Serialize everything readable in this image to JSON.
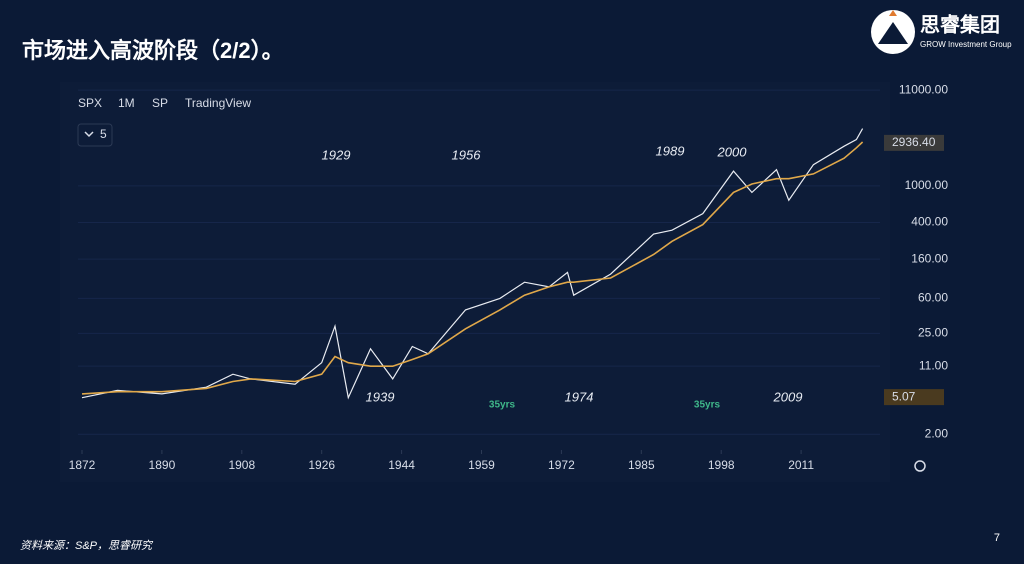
{
  "header": {
    "title": "市场进入高波阶段（2/2）。",
    "logo_cn": "思睿集团",
    "logo_en": "GROW Investment Group"
  },
  "chart_data": {
    "type": "line",
    "legend_items": [
      "SPX",
      "1M",
      "SP",
      "TradingView"
    ],
    "interval_badge": "5",
    "log_scale": true,
    "x": [
      1872,
      1880,
      1890,
      1900,
      1906,
      1910,
      1920,
      1926,
      1929,
      1932,
      1937,
      1942,
      1946,
      1949,
      1956,
      1962,
      1966,
      1970,
      1973,
      1974,
      1980,
      1987,
      1990,
      1995,
      2000,
      2003,
      2007,
      2009,
      2013,
      2018,
      2020,
      2021
    ],
    "series": [
      {
        "name": "SPX",
        "color": "#e9ecf2",
        "values": [
          5,
          6,
          5.5,
          6.5,
          9,
          8,
          7,
          12,
          30,
          5,
          17,
          8,
          18,
          15,
          45,
          60,
          90,
          80,
          115,
          65,
          110,
          300,
          330,
          500,
          1450,
          850,
          1500,
          700,
          1700,
          2700,
          3200,
          4200
        ]
      },
      {
        "name": "MA",
        "color": "#e0a84a",
        "values": [
          5.5,
          5.8,
          5.8,
          6.3,
          7.5,
          8,
          7.5,
          9,
          14,
          12,
          11,
          11,
          13,
          15,
          28,
          45,
          65,
          80,
          90,
          90,
          100,
          180,
          250,
          380,
          850,
          1050,
          1200,
          1200,
          1350,
          2000,
          2600,
          3000
        ]
      }
    ],
    "xticks": [
      1872,
      1890,
      1908,
      1926,
      1944,
      1959,
      1972,
      1985,
      1998,
      2011
    ],
    "ylim": [
      1.35,
      12500
    ],
    "yticks": [
      {
        "value": 11000,
        "label": "11000.00"
      },
      {
        "value": 1000,
        "label": "1000.00"
      },
      {
        "value": 400,
        "label": "400.00"
      },
      {
        "value": 160,
        "label": "160.00"
      },
      {
        "value": 60,
        "label": "60.00"
      },
      {
        "value": 25,
        "label": "25.00"
      },
      {
        "value": 11,
        "label": "11.00"
      },
      {
        "value": 2,
        "label": "2.00"
      }
    ],
    "price_labels": [
      {
        "value": 2936.4,
        "label": "2936.40"
      },
      {
        "value": 5.07,
        "label": "5.07"
      }
    ],
    "annotations": [
      "1929",
      "1956",
      "1989",
      "2000",
      "1939",
      "1974",
      "2009",
      "35yrs",
      "35yrs"
    ]
  },
  "footer": {
    "source": "资料来源：S&P，思睿研究",
    "page": "7"
  }
}
